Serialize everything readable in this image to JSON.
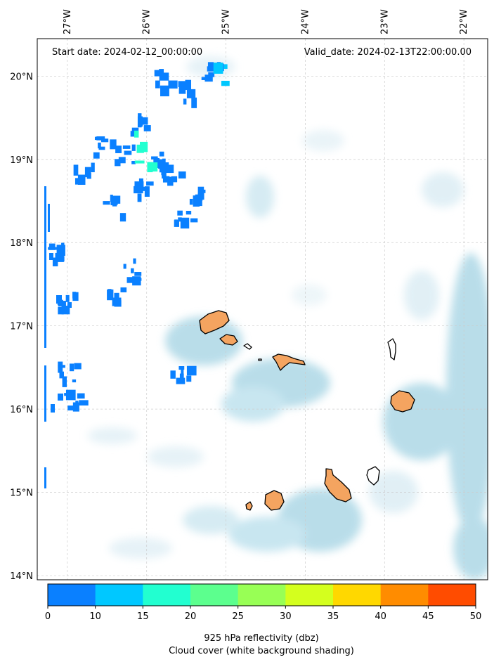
{
  "header": {
    "start_date": "Start date: 2024-02-12_00:00:00",
    "valid_date": "Valid_date: 2024-02-13T22:00:00.00"
  },
  "map": {
    "lon_range": [
      -27.38,
      -21.7
    ],
    "lat_range": [
      13.95,
      20.45
    ],
    "lon_ticks": [
      {
        "value": -27,
        "label": "27°W"
      },
      {
        "value": -26,
        "label": "26°W"
      },
      {
        "value": -25,
        "label": "25°W"
      },
      {
        "value": -24,
        "label": "24°W"
      },
      {
        "value": -23,
        "label": "23°W"
      },
      {
        "value": -22,
        "label": "22°W"
      }
    ],
    "lat_ticks": [
      {
        "value": 20,
        "label": "20°N"
      },
      {
        "value": 19,
        "label": "19°N"
      },
      {
        "value": 18,
        "label": "18°N"
      },
      {
        "value": 17,
        "label": "17°N"
      },
      {
        "value": 16,
        "label": "16°N"
      },
      {
        "value": 15,
        "label": "15°N"
      },
      {
        "value": 14,
        "label": "14°N"
      }
    ],
    "grid": true,
    "colors": {
      "cloud": "#add8e6",
      "land": "#f4a460",
      "coast": "#000000",
      "grid": "#cccccc"
    }
  },
  "islands": [
    {
      "name": "Santo Antão",
      "lon": -25.15,
      "lat": 17.05,
      "fill": "#f4a460"
    },
    {
      "name": "São Vicente",
      "lon": -24.95,
      "lat": 16.85,
      "fill": "#f4a460"
    },
    {
      "name": "Santa Luzia",
      "lon": -24.75,
      "lat": 16.77,
      "fill": "#ffffff"
    },
    {
      "name": "São Nicolau",
      "lon": -24.25,
      "lat": 16.6,
      "fill": "#f4a460"
    },
    {
      "name": "Sal",
      "lon": -22.93,
      "lat": 16.72,
      "fill": "#ffffff"
    },
    {
      "name": "Boa Vista",
      "lon": -22.83,
      "lat": 16.1,
      "fill": "#f4a460"
    },
    {
      "name": "Maio",
      "lon": -23.17,
      "lat": 15.2,
      "fill": "#ffffff"
    },
    {
      "name": "Santiago",
      "lon": -23.6,
      "lat": 15.1,
      "fill": "#f4a460"
    },
    {
      "name": "Fogo",
      "lon": -24.38,
      "lat": 14.92,
      "fill": "#f4a460"
    },
    {
      "name": "Brava",
      "lon": -24.7,
      "lat": 14.85,
      "fill": "#f4a460"
    }
  ],
  "reflectivity_cells": [
    {
      "lon": -26.3,
      "lat": 19.1,
      "dbz": 8
    },
    {
      "lon": -26.1,
      "lat": 19.45,
      "dbz": 8
    },
    {
      "lon": -25.9,
      "lat": 19.0,
      "dbz": 8
    },
    {
      "lon": -26.8,
      "lat": 18.9,
      "dbz": 8
    },
    {
      "lon": -26.55,
      "lat": 19.15,
      "dbz": 8
    },
    {
      "lon": -25.7,
      "lat": 18.9,
      "dbz": 8
    },
    {
      "lon": -25.45,
      "lat": 18.65,
      "dbz": 8
    },
    {
      "lon": -26.05,
      "lat": 18.65,
      "dbz": 8
    },
    {
      "lon": -25.2,
      "lat": 20.05,
      "dbz": 8
    },
    {
      "lon": -25.8,
      "lat": 20.0,
      "dbz": 8
    },
    {
      "lon": -25.5,
      "lat": 19.85,
      "dbz": 8
    },
    {
      "lon": -26.45,
      "lat": 18.45,
      "dbz": 8
    },
    {
      "lon": -26.2,
      "lat": 17.7,
      "dbz": 8
    },
    {
      "lon": -26.4,
      "lat": 17.4,
      "dbz": 8
    },
    {
      "lon": -27.0,
      "lat": 17.3,
      "dbz": 8
    },
    {
      "lon": -25.6,
      "lat": 16.45,
      "dbz": 8
    },
    {
      "lon": -27.0,
      "lat": 16.45,
      "dbz": 8
    },
    {
      "lon": -26.95,
      "lat": 16.15,
      "dbz": 8
    },
    {
      "lon": -27.2,
      "lat": 17.9,
      "dbz": 8
    },
    {
      "lon": -25.55,
      "lat": 18.3,
      "dbz": 8
    },
    {
      "lon": -26.05,
      "lat": 19.25,
      "dbz": 18
    },
    {
      "lon": -26.05,
      "lat": 19.02,
      "dbz": 18
    },
    {
      "lon": -25.1,
      "lat": 20.05,
      "dbz": 12
    }
  ],
  "colorbar": {
    "bounds": [
      0,
      10,
      15,
      20,
      25,
      30,
      35,
      40,
      45,
      50
    ],
    "colors": [
      "#0a80ff",
      "#00c8ff",
      "#22ffd0",
      "#5cff8e",
      "#98ff55",
      "#d4ff1e",
      "#ffd800",
      "#ff8c00",
      "#ff4c00"
    ],
    "tick_labels": [
      "0",
      "10",
      "15",
      "20",
      "25",
      "30",
      "35",
      "40",
      "45",
      "50"
    ],
    "label_line1": "925 hPa reflectivity (dbz)",
    "label_line2": "Cloud cover (white background shading)"
  }
}
